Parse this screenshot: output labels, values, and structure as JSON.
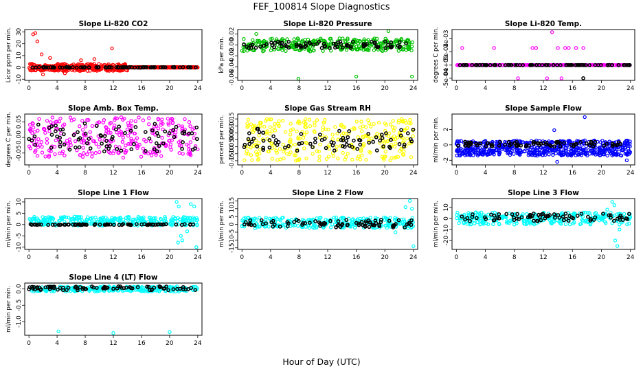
{
  "figure": {
    "title": "FEF_100814  Slope Diagnostics",
    "xlabel": "Hour of Day (UTC)"
  },
  "chart_data": [
    {
      "type": "scatter",
      "title": "Slope Li-820 CO2",
      "ylabel": "Licor ppm per min.",
      "xlim": [
        -0.6,
        24.6
      ],
      "ylim": [
        -11,
        32
      ],
      "xticks": [
        0,
        4,
        8,
        12,
        16,
        20,
        24
      ],
      "yticks": [
        -10,
        0,
        10,
        20,
        30
      ],
      "ytick_labels": [
        "-10",
        "0",
        "10",
        "20",
        "30"
      ],
      "series": [
        {
          "color": "#ff0000",
          "center": 0,
          "spread": 3,
          "x_range": [
            0,
            14
          ],
          "outliers": [
            [
              0.6,
              28
            ],
            [
              0.9,
              29
            ],
            [
              1.2,
              22
            ],
            [
              1.8,
              11
            ],
            [
              3.0,
              8
            ],
            [
              2.0,
              -6
            ],
            [
              11.8,
              16
            ],
            [
              5.1,
              -5
            ],
            [
              7.4,
              6
            ],
            [
              9.3,
              7
            ]
          ]
        },
        {
          "color": "#ff0000",
          "center": 0,
          "spread": 0.3,
          "x_range": [
            14,
            24
          ],
          "outliers": []
        },
        {
          "color": "#000000",
          "center": 0,
          "spread": 0.3,
          "x_range": [
            0,
            24
          ],
          "outliers": []
        }
      ]
    },
    {
      "type": "scatter",
      "title": "Slope Li-820 Pressure",
      "ylabel": "kPa per min.",
      "xlim": [
        -0.6,
        24.6
      ],
      "ylim": [
        -0.065,
        0.028
      ],
      "xticks": [
        0,
        4,
        8,
        12,
        16,
        20,
        24
      ],
      "yticks": [
        -0.06,
        -0.04,
        -0.02,
        0.0,
        0.02
      ],
      "ytick_labels": [
        "-0.06",
        "-0.04",
        "-0.02",
        "0.00",
        "0.02"
      ],
      "series": [
        {
          "color": "#00c000",
          "center": 0.0,
          "spread": 0.012,
          "x_range": [
            0,
            24
          ],
          "outliers": [
            [
              7.9,
              -0.062
            ],
            [
              16.0,
              -0.058
            ],
            [
              23.8,
              -0.058
            ],
            [
              20.5,
              0.025
            ],
            [
              2.0,
              0.02
            ]
          ]
        },
        {
          "color": "#000000",
          "center": 0.0,
          "spread": 0.006,
          "x_range": [
            0,
            24
          ],
          "outliers": []
        }
      ]
    },
    {
      "type": "scatter",
      "title": "Slope Li-820 Temp.",
      "ylabel": "degrees C per min.",
      "xlim": [
        -0.6,
        24.6
      ],
      "ylim": [
        -0.00058,
        0.00135
      ],
      "xticks": [
        0,
        4,
        8,
        12,
        16,
        20,
        24
      ],
      "yticks": [
        -0.0005,
        0.0,
        0.0005,
        0.001
      ],
      "ytick_labels": [
        "-5e-04",
        "0e+00",
        "5e-04",
        "1e-03"
      ],
      "series": [
        {
          "color": "#ff00ff",
          "center": 0.0,
          "spread": 0,
          "x_range": [
            0,
            24
          ],
          "outliers": [
            [
              0.8,
              0.00065
            ],
            [
              5.2,
              0.00065
            ],
            [
              10.5,
              0.00065
            ],
            [
              11.0,
              0.00065
            ],
            [
              13.2,
              0.00125
            ],
            [
              14.0,
              0.00065
            ],
            [
              15.0,
              0.00065
            ],
            [
              15.5,
              0.00065
            ],
            [
              16.5,
              0.00065
            ],
            [
              17.5,
              0.00065
            ],
            [
              8.5,
              -0.0005
            ],
            [
              14.5,
              -0.0005
            ],
            [
              12.5,
              -0.0005
            ]
          ]
        },
        {
          "color": "#000000",
          "center": 0.0,
          "spread": 0,
          "x_range": [
            0,
            24
          ],
          "outliers": [
            [
              17.5,
              -0.0005
            ]
          ]
        }
      ]
    },
    {
      "type": "scatter",
      "title": "Slope Amb. Box Temp.",
      "ylabel": "degrees C per min.",
      "xlim": [
        -0.6,
        24.6
      ],
      "ylim": [
        -0.088,
        0.075
      ],
      "xticks": [
        0,
        4,
        8,
        12,
        16,
        20,
        24
      ],
      "yticks": [
        -0.05,
        0.0,
        0.05
      ],
      "ytick_labels": [
        "-0.05",
        "0.00",
        "0.05"
      ],
      "series": [
        {
          "color": "#ff00ff",
          "center": 0.0,
          "spread": 0.065,
          "x_range": [
            0,
            24
          ],
          "outliers": []
        },
        {
          "color": "#000000",
          "center": 0.0,
          "spread": 0.045,
          "x_range": [
            0,
            24
          ],
          "outliers": []
        }
      ]
    },
    {
      "type": "scatter",
      "title": "Slope Gas Stream RH",
      "ylabel": "percent per min.",
      "xlim": [
        -0.6,
        24.6
      ],
      "ylim": [
        -0.18,
        0.185
      ],
      "xticks": [
        0,
        4,
        8,
        12,
        16,
        20,
        24
      ],
      "yticks": [
        -0.15,
        -0.1,
        -0.05,
        0.0,
        0.05,
        0.1,
        0.15
      ],
      "ytick_labels": [
        "-0.15",
        "-0.10",
        "-0.05",
        "0.00",
        "0.05",
        "0.10",
        "0.15"
      ],
      "series": [
        {
          "color": "#ffff00",
          "center": 0.0,
          "spread": 0.15,
          "x_range": [
            0,
            24
          ],
          "outliers": []
        },
        {
          "color": "#000000",
          "center": 0.0,
          "spread": 0.08,
          "x_range": [
            0,
            24
          ],
          "outliers": []
        }
      ]
    },
    {
      "type": "scatter",
      "title": "Slope Sample Flow",
      "ylabel": "ml/min per min.",
      "xlim": [
        -0.6,
        24.6
      ],
      "ylim": [
        -2.6,
        4.0
      ],
      "xticks": [
        0,
        4,
        8,
        12,
        16,
        20,
        24
      ],
      "yticks": [
        -2,
        0,
        2
      ],
      "ytick_labels": [
        "-2",
        "0",
        "2"
      ],
      "series": [
        {
          "color": "#0000ff",
          "center": 0.0,
          "spread": 0.6,
          "x_range": [
            0,
            24
          ],
          "outliers": [
            [
              17.7,
              3.6
            ],
            [
              13.5,
              1.9
            ],
            [
              13.9,
              -2.2
            ],
            [
              23.5,
              -2.0
            ]
          ]
        },
        {
          "color": "#0000ff",
          "center": -1.0,
          "spread": 0.4,
          "x_range": [
            0,
            24
          ],
          "outliers": []
        },
        {
          "color": "#000000",
          "center": 0.1,
          "spread": 0.3,
          "x_range": [
            0,
            24
          ],
          "outliers": []
        }
      ]
    },
    {
      "type": "scatter",
      "title": "Slope Line 1 Flow",
      "ylabel": "ml/min per min.",
      "xlim": [
        -0.6,
        24.6
      ],
      "ylim": [
        -11,
        11.5
      ],
      "xticks": [
        0,
        4,
        8,
        12,
        16,
        20,
        24
      ],
      "yticks": [
        -10,
        -5,
        0,
        5,
        10
      ],
      "ytick_labels": [
        "-10",
        "-5",
        "0",
        "5",
        "10"
      ],
      "series": [
        {
          "color": "#00ffff",
          "center": 1.5,
          "spread": 2.0,
          "x_range": [
            0,
            24
          ],
          "outliers": [
            [
              21.0,
              10
            ],
            [
              21.3,
              8
            ],
            [
              21.6,
              -5
            ],
            [
              21.8,
              -7
            ],
            [
              22.0,
              3
            ],
            [
              23.0,
              9
            ],
            [
              23.5,
              8
            ],
            [
              23.8,
              -10
            ],
            [
              21.2,
              -8
            ],
            [
              22.5,
              -3
            ]
          ]
        },
        {
          "color": "#000000",
          "center": 0.0,
          "spread": 0.2,
          "x_range": [
            0,
            24
          ],
          "outliers": []
        }
      ]
    },
    {
      "type": "scatter",
      "title": "Slope Line 2 Flow",
      "ylabel": "ml/min per min.",
      "xlim": [
        -0.6,
        24.6
      ],
      "ylim": [
        -16,
        16.5
      ],
      "xticks": [
        0,
        4,
        8,
        12,
        16,
        20,
        24
      ],
      "yticks": [
        -15,
        -10,
        -5,
        0,
        5,
        10,
        15
      ],
      "ytick_labels": [
        "-15",
        "-10",
        "-5",
        "0",
        "5",
        "10",
        "15"
      ],
      "series": [
        {
          "color": "#00ffff",
          "center": 1.0,
          "spread": 3.5,
          "x_range": [
            0,
            24
          ],
          "outliers": [
            [
              23.5,
              15
            ],
            [
              23.8,
              10
            ],
            [
              24.0,
              -14
            ],
            [
              22.9,
              11
            ],
            [
              21.5,
              -5
            ]
          ]
        },
        {
          "color": "#000000",
          "center": 0.5,
          "spread": 2.5,
          "x_range": [
            0,
            24
          ],
          "outliers": []
        }
      ]
    },
    {
      "type": "scatter",
      "title": "Slope Line 3 Flow",
      "ylabel": "ml/min per min.",
      "xlim": [
        -0.6,
        24.6
      ],
      "ylim": [
        -28,
        18
      ],
      "xticks": [
        0,
        4,
        8,
        12,
        16,
        20,
        24
      ],
      "yticks": [
        -20,
        -10,
        0,
        10
      ],
      "ytick_labels": [
        "-20",
        "-10",
        "0",
        "10"
      ],
      "series": [
        {
          "color": "#00ffff",
          "center": 0.0,
          "spread": 5.5,
          "x_range": [
            0,
            24
          ],
          "outliers": [
            [
              21.5,
              15
            ],
            [
              21.8,
              12
            ],
            [
              22.2,
              -25
            ],
            [
              21.9,
              -20
            ],
            [
              22.5,
              -10
            ],
            [
              20.8,
              8
            ]
          ]
        },
        {
          "color": "#000000",
          "center": 1.0,
          "spread": 3.5,
          "x_range": [
            0,
            24
          ],
          "outliers": []
        }
      ]
    },
    {
      "type": "scatter",
      "title": "Slope Line 4 (LT) Flow",
      "ylabel": "ml/min per min.",
      "xlim": [
        -0.6,
        24.6
      ],
      "ylim": [
        -1.42,
        0.18
      ],
      "xticks": [
        0,
        4,
        8,
        12,
        16,
        20,
        24
      ],
      "yticks": [
        -1.0,
        -0.5,
        0.0
      ],
      "ytick_labels": [
        "-1.0",
        "-0.5",
        "0.0"
      ],
      "series": [
        {
          "color": "#00ffff",
          "center": 0.0,
          "spread": 0.08,
          "x_range": [
            0,
            24
          ],
          "outliers": [
            [
              4.2,
              -1.3
            ],
            [
              12.0,
              -1.35
            ],
            [
              20.0,
              -1.32
            ]
          ]
        },
        {
          "color": "#000000",
          "center": 0.02,
          "spread": 0.06,
          "x_range": [
            0,
            24
          ],
          "outliers": []
        }
      ]
    }
  ]
}
